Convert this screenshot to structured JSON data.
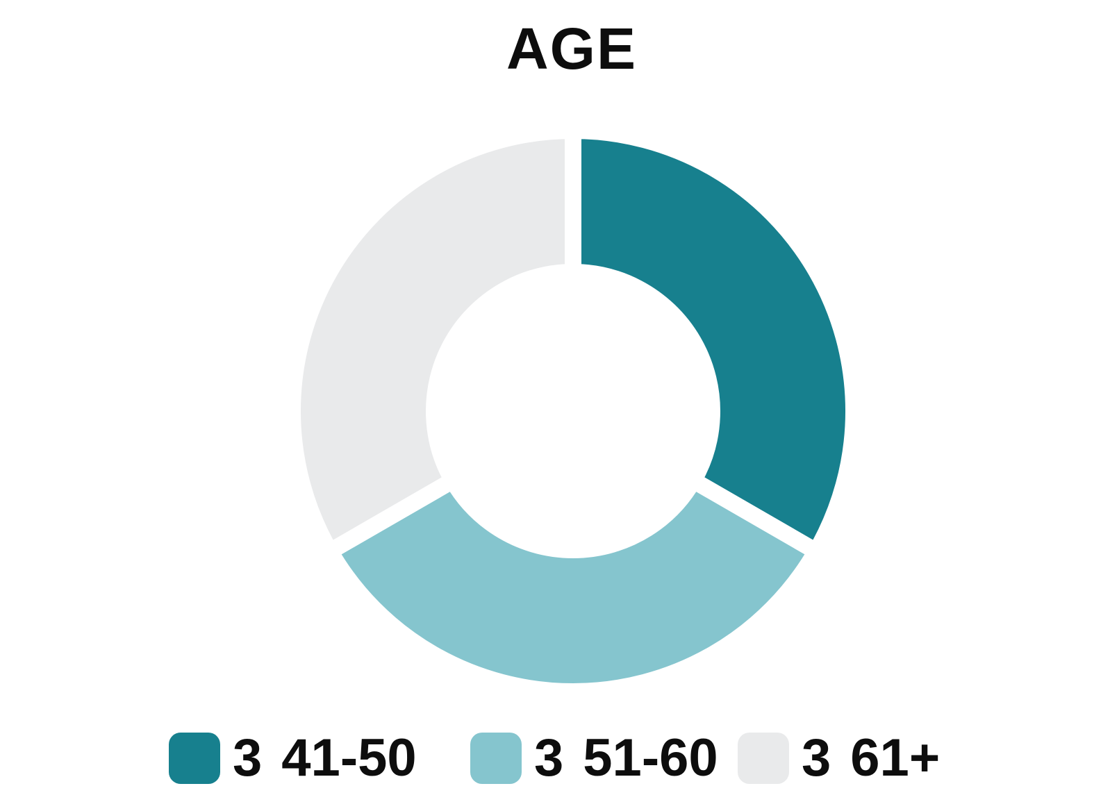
{
  "title": "AGE",
  "colors": {
    "background": "#ffffff",
    "separator": "#ffffff",
    "text": "#0d0d0d",
    "teal_dark": "#17808e",
    "teal_light": "#85c5ce",
    "gray_light": "#e9eaeb"
  },
  "legend": {
    "items": [
      {
        "value": "3",
        "label": "41-50",
        "color": "#17808e"
      },
      {
        "value": "3",
        "label": "51-60",
        "color": "#85c5ce"
      },
      {
        "value": "3",
        "label": "61+",
        "color": "#e9eaeb"
      }
    ]
  },
  "chart_data": {
    "type": "pie",
    "variant": "donut",
    "title": "AGE",
    "categories": [
      "41-50",
      "51-60",
      "61+"
    ],
    "values": [
      3,
      3,
      3
    ],
    "percentages": [
      33.3,
      33.3,
      33.3
    ],
    "colors": [
      "#17808e",
      "#85c5ce",
      "#e9eaeb"
    ],
    "start_angle_deg": 0,
    "direction": "clockwise",
    "hole_ratio": 0.54,
    "slice_border_color": "#ffffff",
    "slice_border_px": 24,
    "legend_position": "bottom",
    "legend_entry_format": "count category"
  }
}
